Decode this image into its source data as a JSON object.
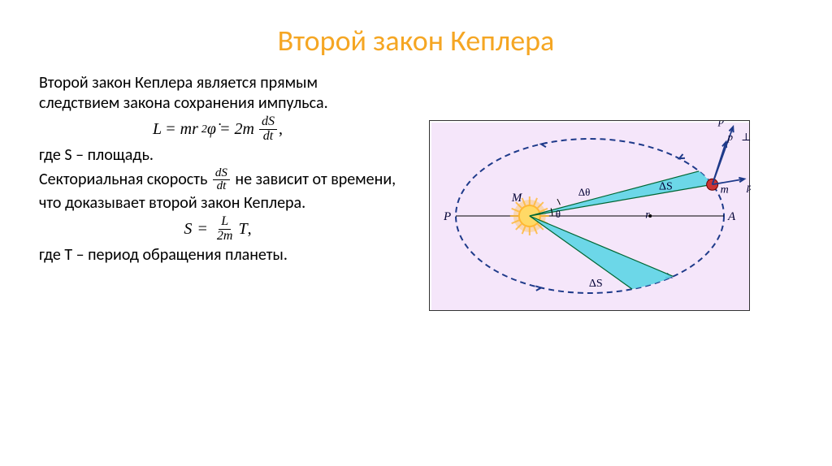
{
  "title": "Второй закон Кеплера",
  "title_color": "#f5a623",
  "intro": "Второй закон Кеплера является прямым следствием закона сохранения импульса.",
  "formula1": {
    "L": "L",
    "eq1": "= mr",
    "sq": "2",
    "phi": "φ̇",
    "eq2": "= 2m",
    "frac_num": "dS",
    "frac_den": "dt",
    "comma": ","
  },
  "where_s": "где S – площадь.",
  "sect_speed_1": "Секториальная скорость ",
  "sect_frac_num": "dS",
  "sect_frac_den": "dt",
  "sect_speed_2": " не зависит от времени, что доказывает второй закон Кеплера.",
  "formula2": {
    "S": "S",
    "eq": "=",
    "frac_num": "L",
    "frac_den": "2m",
    "T": "T",
    "comma": ","
  },
  "where_t": "где T – период обращения планеты.",
  "diagram": {
    "bg_color": "#f5e6fa",
    "ellipse_stroke": "#1e3a8a",
    "sector_fill": "#5dd5e5",
    "sun_color": "#ffb732",
    "sun_core": "#ffd966",
    "planet_color": "#cc3333",
    "text_color": "#000033",
    "labels": {
      "P": "P",
      "A": "A",
      "M": "M",
      "m": "m",
      "r": "r⃗",
      "theta": "θ",
      "dtheta": "Δθ",
      "dS1": "ΔS",
      "dS2": "ΔS",
      "p": "p⃗",
      "pr": "p⃗ᵣ",
      "pp": "p⃗⊥"
    }
  }
}
